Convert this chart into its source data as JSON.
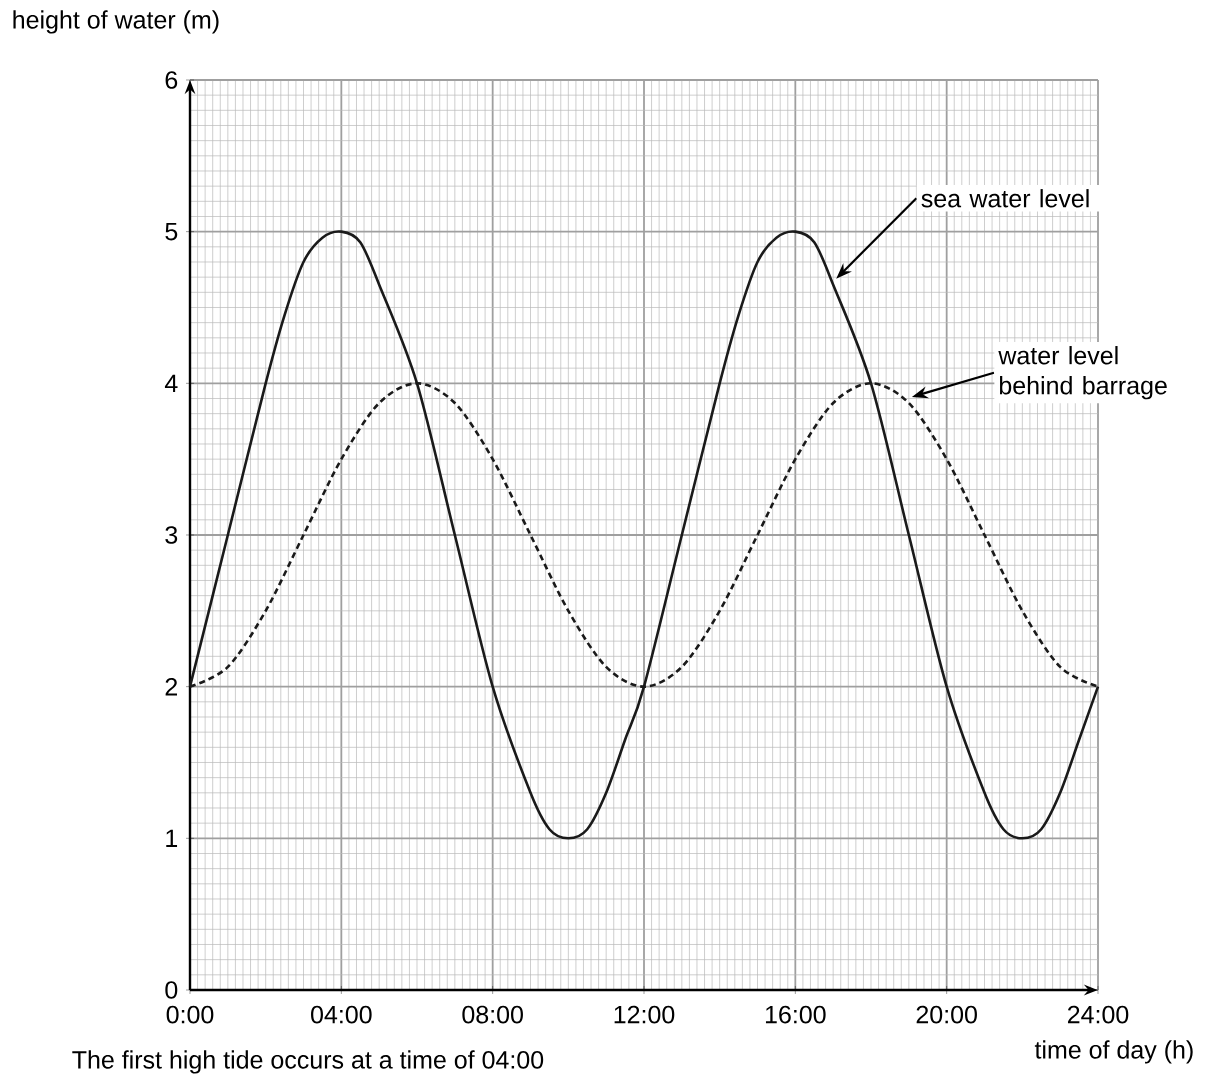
{
  "chart_data": {
    "type": "line",
    "xlabel": "time of day (h)",
    "ylabel": "height of water (m)",
    "xlim": [
      0,
      24
    ],
    "ylim": [
      0,
      6
    ],
    "xticks": [
      {
        "value": 0,
        "label": "0:00"
      },
      {
        "value": 4,
        "label": "04:00"
      },
      {
        "value": 8,
        "label": "08:00"
      },
      {
        "value": 12,
        "label": "12:00"
      },
      {
        "value": 16,
        "label": "16:00"
      },
      {
        "value": 20,
        "label": "20:00"
      },
      {
        "value": 24,
        "label": "24:00"
      }
    ],
    "yticks": [
      0,
      1,
      2,
      3,
      4,
      5,
      6
    ],
    "grid": true,
    "marker": "none",
    "series": [
      {
        "name": "sea water level",
        "color": "#1a1a1a",
        "line_style": "solid",
        "x": [
          0,
          1,
          2,
          2.5,
          3,
          3.5,
          4,
          4.5,
          5,
          6,
          7,
          8,
          9,
          9.5,
          10,
          10.5,
          11,
          11.5,
          12,
          13,
          14,
          14.5,
          15,
          15.5,
          16,
          16.5,
          17,
          18,
          19,
          20,
          21,
          21.5,
          22,
          22.5,
          23,
          23.5,
          24
        ],
        "values": [
          2,
          3,
          4,
          4.45,
          4.8,
          4.96,
          5,
          4.93,
          4.65,
          4,
          3,
          2,
          1.3,
          1.06,
          1,
          1.06,
          1.3,
          1.65,
          2,
          3,
          4,
          4.45,
          4.8,
          4.96,
          5,
          4.93,
          4.65,
          4,
          3,
          2,
          1.3,
          1.06,
          1,
          1.06,
          1.3,
          1.65,
          2
        ]
      },
      {
        "name": "water level behind barrage",
        "color": "#1a1a1a",
        "line_style": "dashed",
        "x": [
          0,
          1,
          2,
          3,
          4,
          5,
          6,
          7,
          8,
          9,
          10,
          11,
          12,
          13,
          14,
          15,
          16,
          17,
          18,
          19,
          20,
          21,
          22,
          23,
          24
        ],
        "values": [
          2,
          2.13,
          2.5,
          3,
          3.5,
          3.87,
          4,
          3.87,
          3.5,
          3,
          2.5,
          2.13,
          2,
          2.13,
          2.5,
          3,
          3.5,
          3.87,
          4,
          3.87,
          3.5,
          3,
          2.5,
          2.13,
          2
        ]
      }
    ],
    "annotations": [
      "The first high tide occurs at a time of 04:00"
    ]
  }
}
